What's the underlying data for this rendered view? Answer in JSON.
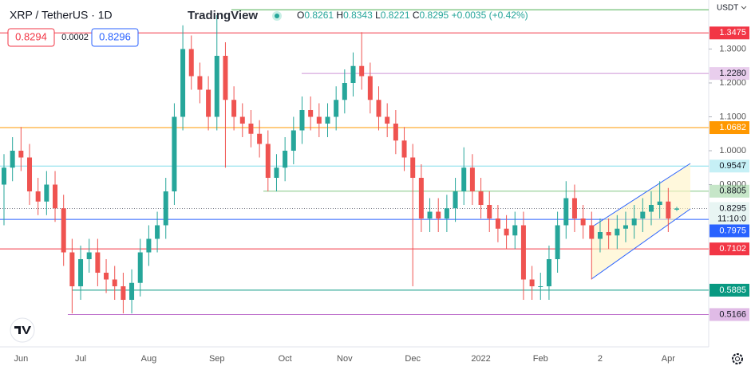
{
  "chart_data": {
    "type": "candlestick",
    "title": "XRP / TetherUS · 1D",
    "brand": "TradingView",
    "ohlc_prefixes": [
      "O",
      "H",
      "L",
      "C"
    ],
    "change": "+0.0035 (+0.42%)",
    "sell": 0.8294,
    "spread": 0.0002,
    "buy": 0.8296,
    "currency": "USDT",
    "countdown": "11:10:0",
    "up_color": "#26a69a",
    "down_color": "#ef5350",
    "categories": [
      null,
      null,
      "Jun",
      null,
      null,
      null,
      null,
      null,
      null,
      "Jul",
      null,
      null,
      null,
      null,
      null,
      null,
      null,
      "Aug",
      null,
      null,
      null,
      null,
      null,
      null,
      null,
      "Sep",
      null,
      null,
      null,
      null,
      null,
      null,
      null,
      "Oct",
      null,
      null,
      null,
      null,
      null,
      null,
      "Nov",
      null,
      null,
      null,
      null,
      null,
      null,
      null,
      "Dec",
      null,
      null,
      null,
      null,
      null,
      null,
      null,
      "2022",
      null,
      null,
      null,
      null,
      null,
      null,
      "Feb",
      null,
      null,
      null,
      null,
      null,
      null,
      "2",
      null,
      null,
      null,
      null,
      null,
      null,
      null,
      "Apr",
      null
    ],
    "open": [
      0.9,
      0.95,
      1.0,
      0.98,
      0.88,
      0.85,
      0.9,
      0.83,
      0.7,
      0.6,
      0.68,
      0.7,
      0.64,
      0.62,
      0.6,
      0.56,
      0.61,
      0.7,
      0.74,
      0.78,
      0.88,
      1.1,
      1.3,
      1.22,
      1.18,
      1.1,
      1.28,
      1.15,
      1.1,
      1.08,
      1.05,
      1.02,
      0.92,
      0.95,
      1.0,
      1.06,
      1.12,
      1.1,
      1.08,
      1.1,
      1.15,
      1.2,
      1.25,
      1.22,
      1.15,
      1.1,
      1.08,
      1.03,
      0.98,
      0.92,
      0.8,
      0.82,
      0.8,
      0.83,
      0.88,
      0.95,
      0.88,
      0.84,
      0.8,
      0.77,
      0.75,
      0.78,
      0.62,
      0.6,
      0.6,
      0.68,
      0.78,
      0.86,
      0.8,
      0.78,
      0.74,
      0.76,
      0.75,
      0.77,
      0.78,
      0.8,
      0.82,
      0.84,
      0.85,
      0.8261
    ],
    "high": [
      0.99,
      1.04,
      1.07,
      1.02,
      0.92,
      0.94,
      0.94,
      0.87,
      0.74,
      0.72,
      0.74,
      0.74,
      0.68,
      0.66,
      0.64,
      0.65,
      0.74,
      0.78,
      0.82,
      0.92,
      1.14,
      1.37,
      1.34,
      1.26,
      1.22,
      1.4,
      1.32,
      1.19,
      1.14,
      1.12,
      1.09,
      1.06,
      0.99,
      1.04,
      1.1,
      1.16,
      1.16,
      1.14,
      1.14,
      1.19,
      1.24,
      1.29,
      1.35,
      1.26,
      1.19,
      1.14,
      1.12,
      1.07,
      1.02,
      0.96,
      0.86,
      0.86,
      0.87,
      0.92,
      1.01,
      0.99,
      0.92,
      0.88,
      0.84,
      0.81,
      0.82,
      0.82,
      0.66,
      0.64,
      0.72,
      0.82,
      0.91,
      0.9,
      0.84,
      0.82,
      0.8,
      0.8,
      0.81,
      0.82,
      0.84,
      0.86,
      0.88,
      0.91,
      0.89,
      0.8343
    ],
    "low": [
      0.78,
      0.91,
      0.94,
      0.84,
      0.81,
      0.81,
      0.79,
      0.66,
      0.52,
      0.56,
      0.64,
      0.6,
      0.58,
      0.56,
      0.52,
      0.52,
      0.57,
      0.66,
      0.7,
      0.74,
      0.84,
      1.06,
      1.18,
      1.14,
      1.06,
      1.06,
      0.95,
      1.06,
      1.04,
      1.01,
      0.98,
      0.88,
      0.88,
      0.91,
      0.96,
      1.02,
      1.06,
      1.04,
      1.04,
      1.06,
      1.11,
      1.16,
      1.18,
      1.11,
      1.06,
      1.04,
      0.99,
      0.94,
      0.6,
      0.76,
      0.76,
      0.76,
      0.76,
      0.79,
      0.84,
      0.84,
      0.8,
      0.76,
      0.73,
      0.71,
      0.71,
      0.56,
      0.56,
      0.56,
      0.56,
      0.64,
      0.74,
      0.76,
      0.74,
      0.62,
      0.7,
      0.71,
      0.71,
      0.73,
      0.74,
      0.76,
      0.78,
      0.8,
      0.76,
      0.8221
    ],
    "close": [
      0.95,
      1.0,
      0.98,
      0.88,
      0.85,
      0.9,
      0.83,
      0.7,
      0.6,
      0.68,
      0.7,
      0.64,
      0.62,
      0.6,
      0.56,
      0.61,
      0.7,
      0.74,
      0.78,
      0.88,
      1.1,
      1.3,
      1.22,
      1.18,
      1.1,
      1.28,
      1.15,
      1.1,
      1.08,
      1.05,
      1.02,
      0.92,
      0.95,
      1.0,
      1.06,
      1.12,
      1.1,
      1.08,
      1.1,
      1.15,
      1.2,
      1.25,
      1.22,
      1.15,
      1.1,
      1.08,
      1.03,
      0.98,
      0.92,
      0.8,
      0.82,
      0.8,
      0.83,
      0.88,
      0.95,
      0.88,
      0.84,
      0.8,
      0.77,
      0.75,
      0.78,
      0.62,
      0.6,
      0.6,
      0.68,
      0.78,
      0.86,
      0.8,
      0.78,
      0.74,
      0.76,
      0.75,
      0.77,
      0.78,
      0.8,
      0.82,
      0.84,
      0.85,
      0.8,
      0.8295
    ],
    "ylim": [
      0.4212,
      1.4447
    ],
    "yticks": [
      {
        "value": 1.3,
        "label": "1.3000"
      },
      {
        "value": 1.2,
        "label": "1.2000"
      },
      {
        "value": 1.1,
        "label": "1.1000"
      },
      {
        "value": 1.0,
        "label": "1.0000"
      },
      {
        "value": 0.9,
        "label": "0.9000"
      }
    ],
    "levels": [
      {
        "value": 1.416,
        "color": "#4caf50"
      },
      {
        "value": 1.3475,
        "label": "1.3475",
        "color": "#f23645"
      },
      {
        "value": 1.228,
        "label": "1.2280",
        "color": "#ce93d8"
      },
      {
        "value": 1.0682,
        "label": "1.0682",
        "color": "#ff9800"
      },
      {
        "value": 0.9547,
        "label": "0.9547",
        "color": "#80deea"
      },
      {
        "value": 0.8805,
        "label": "0.8805",
        "color": "#81c784"
      },
      {
        "value": 0.7975,
        "label": "0.7975",
        "color": "#2962ff"
      },
      {
        "value": 0.7102,
        "label": "0.7102",
        "color": "#f23645"
      },
      {
        "value": 0.5885,
        "label": "0.5885",
        "color": "#089981"
      },
      {
        "value": 0.5166,
        "label": "0.5166",
        "color": "#ba68c8"
      }
    ]
  }
}
